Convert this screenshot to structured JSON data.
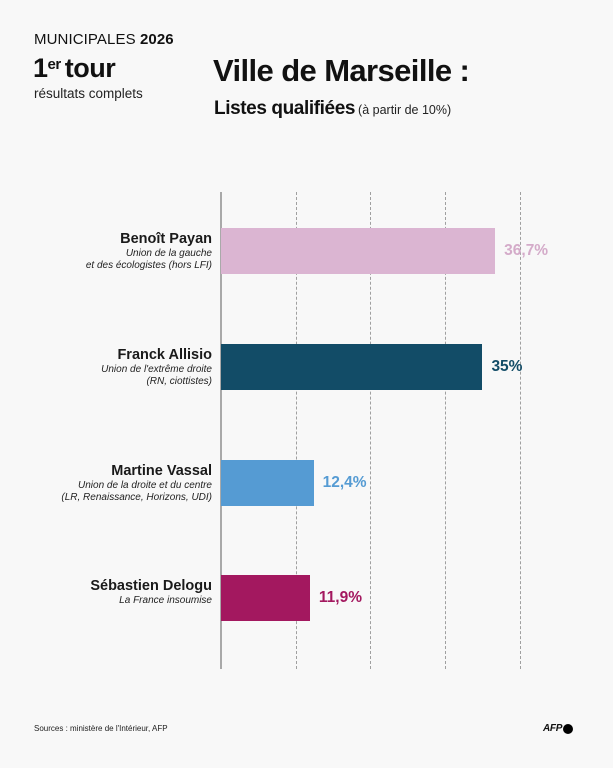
{
  "header": {
    "kicker_light": "MUNICIPALES",
    "kicker_bold": "2026",
    "round_number": "1",
    "round_suffix": "er",
    "round_word": "tour",
    "round_sub": "résultats complets",
    "title": "Ville de Marseille :",
    "subtitle": "Listes qualifiées",
    "subtitle_note": "(à partir de 10%)"
  },
  "chart_data": {
    "type": "bar",
    "orientation": "horizontal",
    "title": "Ville de Marseille : Listes qualifiées (à partir de 10%)",
    "xlabel": "",
    "ylabel": "",
    "xlim": [
      0,
      40
    ],
    "grid": true,
    "grid_ticks": [
      10,
      20,
      30,
      40
    ],
    "unit": "%",
    "categories": [
      "Benoît Payan",
      "Franck Allisio",
      "Martine Vassal",
      "Sébastien Delogu"
    ],
    "values": [
      36.7,
      35,
      12.4,
      11.9
    ],
    "items": [
      {
        "name": "Benoît Payan",
        "party_line1": "Union de la gauche",
        "party_line2": "et des écologistes (hors LFI)",
        "value": 36.7,
        "label": "36,7%",
        "color": "#dbb5d2",
        "label_color": "#d4abc9"
      },
      {
        "name": "Franck Allisio",
        "party_line1": "Union de l'extrême droite",
        "party_line2": "(RN, ciottistes)",
        "value": 35,
        "label": "35%",
        "color": "#124c67",
        "label_color": "#124c67"
      },
      {
        "name": "Martine Vassal",
        "party_line1": "Union de la droite et du centre",
        "party_line2": "(LR, Renaissance, Horizons, UDI)",
        "value": 12.4,
        "label": "12,4%",
        "color": "#559bd3",
        "label_color": "#559bd3"
      },
      {
        "name": "Sébastien Delogu",
        "party_line1": "La France insoumise",
        "party_line2": "",
        "value": 11.9,
        "label": "11,9%",
        "color": "#a3185f",
        "label_color": "#a3185f"
      }
    ]
  },
  "footer": {
    "source": "Sources : ministère de l'Intérieur, AFP",
    "logo_text": "AFP",
    "logo_icon": "afp-dot-icon"
  }
}
